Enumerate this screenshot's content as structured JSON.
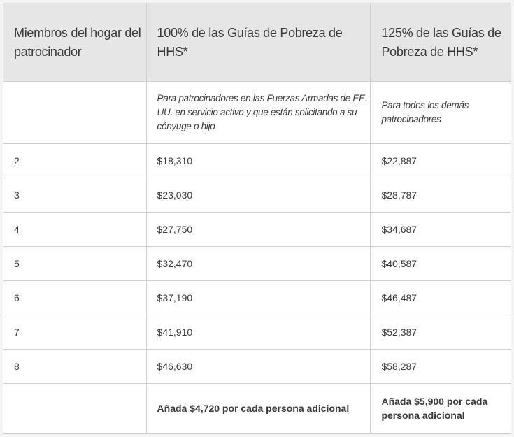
{
  "table": {
    "headers": [
      "Miembros del hogar del patrocinador",
      "100% de las Guías de Pobreza de HHS*",
      "125% de las Guías de Pobreza de HHS*"
    ],
    "descriptions": [
      "",
      "Para patrocinadores en las Fuerzas Armadas de EE. UU. en servicio activo y que están solicitando a su cónyuge o hijo",
      "Para todos los demás patrocinadores"
    ],
    "rows": [
      [
        "2",
        "$18,310",
        "$22,887"
      ],
      [
        "3",
        "$23,030",
        "$28,787"
      ],
      [
        "4",
        "$27,750",
        "$34,687"
      ],
      [
        "5",
        "$32,470",
        "$40,587"
      ],
      [
        "6",
        "$37,190",
        "$46,487"
      ],
      [
        "7",
        "$41,910",
        "$52,387"
      ],
      [
        "8",
        "$46,630",
        "$58,287"
      ]
    ],
    "footer": [
      "",
      "Añada $4,720 por cada persona adicional",
      "Añada $5,900 por cada persona adicional"
    ]
  }
}
